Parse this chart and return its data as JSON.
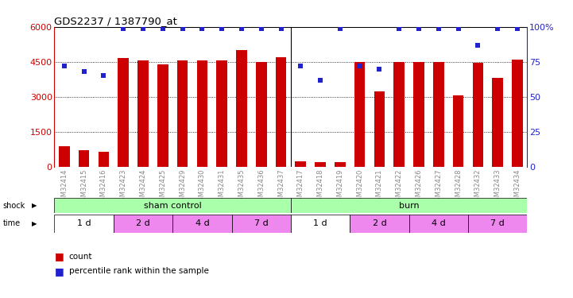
{
  "title": "GDS2237 / 1387790_at",
  "samples": [
    "GSM32414",
    "GSM32415",
    "GSM32416",
    "GSM32423",
    "GSM32424",
    "GSM32425",
    "GSM32429",
    "GSM32430",
    "GSM32431",
    "GSM32435",
    "GSM32436",
    "GSM32437",
    "GSM32417",
    "GSM32418",
    "GSM32419",
    "GSM32420",
    "GSM32421",
    "GSM32422",
    "GSM32426",
    "GSM32427",
    "GSM32428",
    "GSM32432",
    "GSM32433",
    "GSM32434"
  ],
  "counts": [
    900,
    700,
    650,
    4650,
    4550,
    4400,
    4550,
    4550,
    4550,
    5000,
    4500,
    4700,
    250,
    200,
    200,
    4500,
    3250,
    4500,
    4500,
    4500,
    3050,
    4450,
    3800,
    4600
  ],
  "percentiles": [
    72,
    68,
    65,
    99,
    99,
    99,
    99,
    99,
    99,
    99,
    99,
    99,
    72,
    62,
    99,
    72,
    70,
    99,
    99,
    99,
    99,
    87,
    99,
    99
  ],
  "bar_color": "#cc0000",
  "dot_color": "#2222cc",
  "left_ylim": [
    0,
    6000
  ],
  "left_yticks": [
    0,
    1500,
    3000,
    4500,
    6000
  ],
  "right_ylim": [
    0,
    100
  ],
  "right_yticks": [
    0,
    25,
    50,
    75,
    100
  ],
  "shock_sham_span": [
    0,
    12
  ],
  "shock_burn_span": [
    12,
    24
  ],
  "shock_color": "#aaffaa",
  "time_groups": [
    {
      "label": "1 d",
      "start": 0,
      "end": 3,
      "color": "#ffffff"
    },
    {
      "label": "2 d",
      "start": 3,
      "end": 6,
      "color": "#ee88ee"
    },
    {
      "label": "4 d",
      "start": 6,
      "end": 9,
      "color": "#ee88ee"
    },
    {
      "label": "7 d",
      "start": 9,
      "end": 12,
      "color": "#ee88ee"
    },
    {
      "label": "1 d",
      "start": 12,
      "end": 15,
      "color": "#ffffff"
    },
    {
      "label": "2 d",
      "start": 15,
      "end": 18,
      "color": "#ee88ee"
    },
    {
      "label": "4 d",
      "start": 18,
      "end": 21,
      "color": "#ee88ee"
    },
    {
      "label": "7 d",
      "start": 21,
      "end": 24,
      "color": "#ee88ee"
    }
  ],
  "bg_color": "#ffffff",
  "tick_label_color": "#888888",
  "left_axis_color": "#cc0000",
  "right_axis_color": "#2222cc",
  "grid_yticks": [
    1500,
    3000,
    4500
  ],
  "legend": [
    {
      "label": "count",
      "color": "#cc0000"
    },
    {
      "label": "percentile rank within the sample",
      "color": "#2222cc"
    }
  ]
}
